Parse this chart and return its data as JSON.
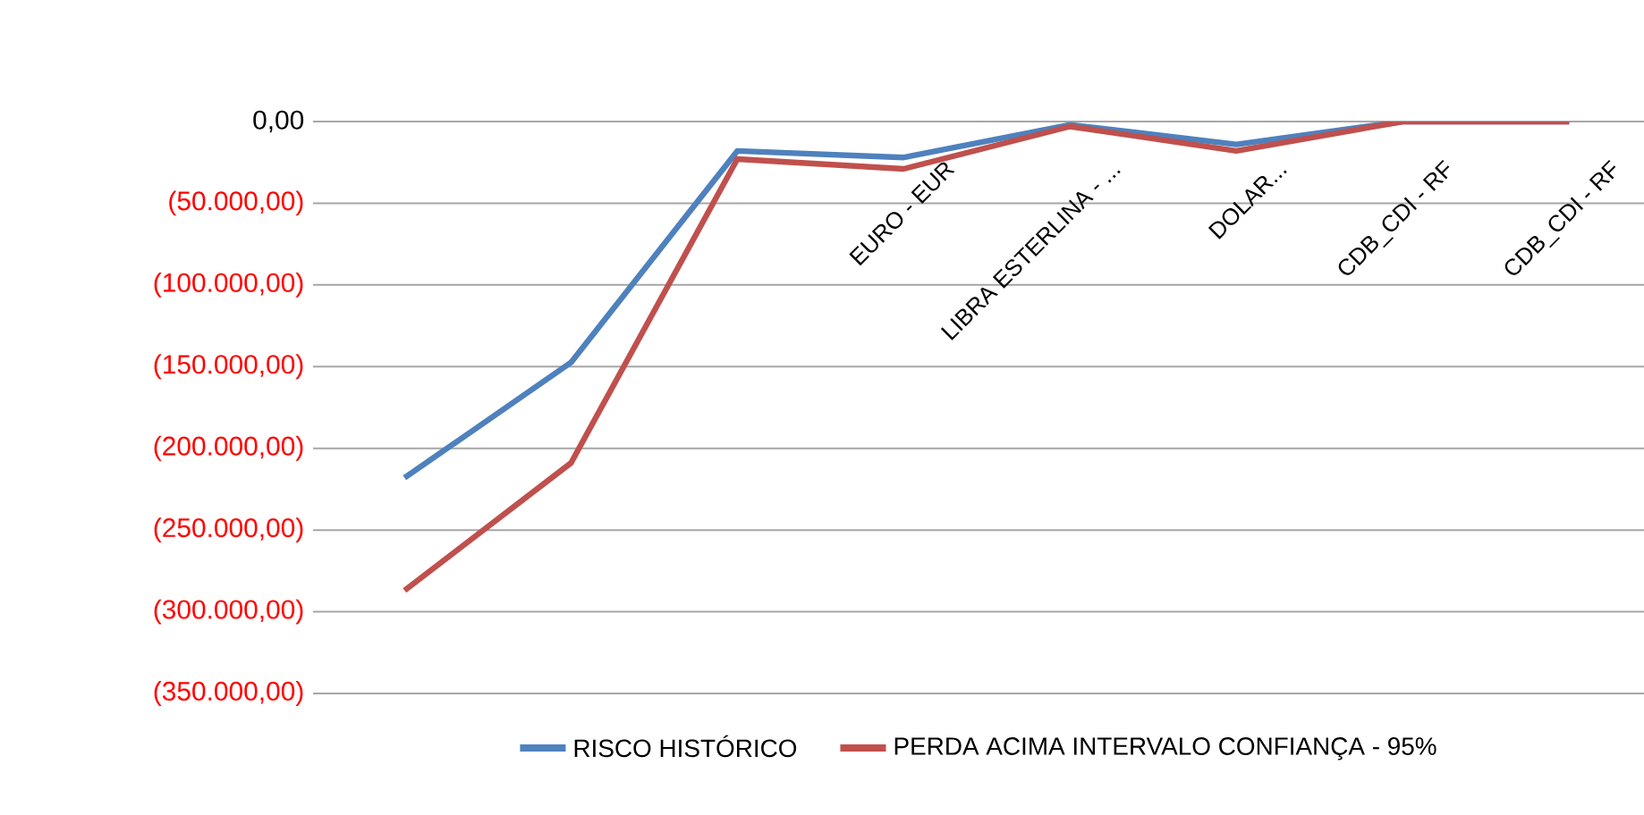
{
  "chart_data": {
    "type": "line",
    "categories": [
      null,
      null,
      null,
      "EURO - EUR",
      "LIBRA ESTERLINA - ...",
      "DOLAR...",
      "CDB_CDI - RF",
      "CDB_CDI - RF"
    ],
    "series": [
      {
        "name": "RISCO HISTÓRICO",
        "color": "#4f81bd",
        "values": [
          -218000,
          -147500,
          -18000,
          -22000,
          -2000,
          -14000,
          0,
          0
        ]
      },
      {
        "name": "PERDA ACIMA INTERVALO  CONFIANÇA - 95%",
        "color": "#c0504d",
        "values": [
          -287000,
          -209000,
          -23000,
          -29000,
          -3000,
          -18000,
          0,
          0
        ]
      }
    ],
    "ylim": [
      -350000,
      0
    ],
    "yticks": [
      {
        "value": 0,
        "label": "0,00"
      },
      {
        "value": -50000,
        "label": "(50.000,00)"
      },
      {
        "value": -100000,
        "label": "(100.000,00)"
      },
      {
        "value": -150000,
        "label": "(150.000,00)"
      },
      {
        "value": -200000,
        "label": "(200.000,00)"
      },
      {
        "value": -250000,
        "label": "(250.000,00)"
      },
      {
        "value": -300000,
        "label": "(300.000,00)"
      },
      {
        "value": -350000,
        "label": "(350.000,00)"
      }
    ],
    "grid": "y",
    "legend": "bottom",
    "marker": "none",
    "line_style": "solid"
  }
}
